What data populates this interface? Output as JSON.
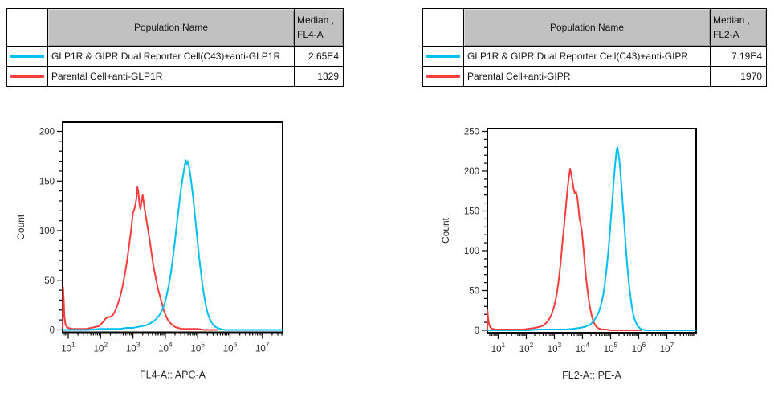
{
  "tables": [
    {
      "header": {
        "population": "Population Name",
        "median_line1": "Median ,",
        "median_line2": "FL4-A"
      },
      "rows": [
        {
          "color": "#00bff3",
          "population": "GLP1R & GIPR Dual Reporter Cell(C43)+anti-GLP1R",
          "median": "2.65E4"
        },
        {
          "color": "#f73e3e",
          "population": "Parental Cell+anti-GLP1R",
          "median": "1329"
        }
      ]
    },
    {
      "header": {
        "population": "Population Name",
        "median_line1": "Median ,",
        "median_line2": "FL2-A"
      },
      "rows": [
        {
          "color": "#00bff3",
          "population": "GLP1R & GIPR Dual Reporter Cell(C43)+anti-GIPR",
          "median": "7.19E4"
        },
        {
          "color": "#f73e3e",
          "population": "Parental Cell+anti-GIPR",
          "median": "1970"
        }
      ]
    }
  ],
  "chart_data": [
    {
      "type": "line",
      "title": "",
      "xlabel": "FL4-A:: APC-A",
      "ylabel": "Count",
      "xscale": "log10",
      "xlim_log": [
        0.83,
        7.63
      ],
      "x_decades": [
        1,
        2,
        3,
        4,
        5,
        6,
        7
      ],
      "ylim": [
        0,
        210
      ],
      "yticks": [
        0,
        50,
        100,
        150,
        200
      ],
      "y_minor_step": 10,
      "grid": false,
      "series": [
        {
          "name": "Parental Cell+anti-GLP1R",
          "color": "#f73e3e",
          "median": "1329",
          "points": [
            [
              0.83,
              2
            ],
            [
              0.84,
              43
            ],
            [
              0.86,
              30
            ],
            [
              0.88,
              14
            ],
            [
              0.91,
              6
            ],
            [
              0.95,
              3
            ],
            [
              1.0,
              2
            ],
            [
              1.1,
              1
            ],
            [
              1.25,
              1
            ],
            [
              1.4,
              1
            ],
            [
              1.55,
              1
            ],
            [
              1.7,
              2
            ],
            [
              1.85,
              3
            ],
            [
              1.95,
              4
            ],
            [
              2.05,
              7
            ],
            [
              2.15,
              11
            ],
            [
              2.22,
              13
            ],
            [
              2.3,
              13
            ],
            [
              2.38,
              15
            ],
            [
              2.45,
              19
            ],
            [
              2.52,
              25
            ],
            [
              2.6,
              33
            ],
            [
              2.68,
              44
            ],
            [
              2.75,
              56
            ],
            [
              2.82,
              70
            ],
            [
              2.88,
              85
            ],
            [
              2.94,
              100
            ],
            [
              3.0,
              118
            ],
            [
              3.04,
              121
            ],
            [
              3.08,
              127
            ],
            [
              3.11,
              133
            ],
            [
              3.14,
              144
            ],
            [
              3.17,
              138
            ],
            [
              3.2,
              127
            ],
            [
              3.23,
              122
            ],
            [
              3.27,
              130
            ],
            [
              3.3,
              136
            ],
            [
              3.33,
              129
            ],
            [
              3.37,
              120
            ],
            [
              3.42,
              110
            ],
            [
              3.47,
              100
            ],
            [
              3.52,
              90
            ],
            [
              3.57,
              78
            ],
            [
              3.63,
              65
            ],
            [
              3.7,
              53
            ],
            [
              3.77,
              42
            ],
            [
              3.84,
              33
            ],
            [
              3.9,
              26
            ],
            [
              3.96,
              19
            ],
            [
              4.02,
              14
            ],
            [
              4.08,
              10
            ],
            [
              4.15,
              7
            ],
            [
              4.22,
              5
            ],
            [
              4.3,
              3
            ],
            [
              4.4,
              2
            ],
            [
              4.5,
              1
            ],
            [
              4.65,
              1
            ],
            [
              4.8,
              1
            ],
            [
              5.0,
              1
            ],
            [
              5.2,
              0
            ],
            [
              5.45,
              0
            ],
            [
              5.6,
              0
            ]
          ]
        },
        {
          "name": "GLP1R & GIPR Dual Reporter Cell(C43)+anti-GLP1R",
          "color": "#00bff3",
          "median": "2.65E4",
          "points": [
            [
              0.83,
              0
            ],
            [
              1.2,
              0
            ],
            [
              1.6,
              0
            ],
            [
              2.0,
              1
            ],
            [
              2.3,
              1
            ],
            [
              2.6,
              1
            ],
            [
              2.8,
              2
            ],
            [
              3.0,
              2
            ],
            [
              3.15,
              3
            ],
            [
              3.3,
              4
            ],
            [
              3.45,
              5
            ],
            [
              3.55,
              7
            ],
            [
              3.65,
              9
            ],
            [
              3.75,
              12
            ],
            [
              3.82,
              15
            ],
            [
              3.9,
              20
            ],
            [
              3.97,
              26
            ],
            [
              4.03,
              33
            ],
            [
              4.1,
              44
            ],
            [
              4.17,
              57
            ],
            [
              4.23,
              72
            ],
            [
              4.3,
              90
            ],
            [
              4.36,
              108
            ],
            [
              4.42,
              124
            ],
            [
              4.47,
              138
            ],
            [
              4.52,
              150
            ],
            [
              4.56,
              158
            ],
            [
              4.6,
              166
            ],
            [
              4.63,
              171
            ],
            [
              4.66,
              167
            ],
            [
              4.69,
              170
            ],
            [
              4.73,
              165
            ],
            [
              4.77,
              157
            ],
            [
              4.81,
              147
            ],
            [
              4.86,
              133
            ],
            [
              4.9,
              120
            ],
            [
              4.95,
              104
            ],
            [
              5.0,
              88
            ],
            [
              5.05,
              72
            ],
            [
              5.1,
              58
            ],
            [
              5.15,
              45
            ],
            [
              5.2,
              34
            ],
            [
              5.25,
              25
            ],
            [
              5.3,
              18
            ],
            [
              5.36,
              12
            ],
            [
              5.42,
              8
            ],
            [
              5.48,
              5
            ],
            [
              5.55,
              3
            ],
            [
              5.62,
              2
            ],
            [
              5.7,
              1
            ],
            [
              5.85,
              0
            ],
            [
              6.2,
              0
            ],
            [
              6.6,
              0
            ],
            [
              7.0,
              0
            ],
            [
              7.3,
              0
            ],
            [
              7.63,
              0
            ]
          ]
        }
      ]
    },
    {
      "type": "line",
      "title": "",
      "xlabel": "FL2-A:: PE-A",
      "ylabel": "Count",
      "xscale": "log10",
      "xlim_log": [
        0.61,
        8.04
      ],
      "x_decades": [
        1,
        2,
        3,
        4,
        5,
        6,
        7
      ],
      "ylim": [
        0,
        251
      ],
      "yticks": [
        0,
        50,
        100,
        150,
        200,
        250
      ],
      "y_minor_step": 10,
      "grid": false,
      "series": [
        {
          "name": "Parental Cell+anti-GIPR",
          "color": "#f73e3e",
          "median": "1970",
          "points": [
            [
              0.61,
              0
            ],
            [
              0.62,
              25
            ],
            [
              0.64,
              16
            ],
            [
              0.67,
              8
            ],
            [
              0.71,
              4
            ],
            [
              0.78,
              2
            ],
            [
              0.9,
              1
            ],
            [
              1.1,
              1
            ],
            [
              1.3,
              1
            ],
            [
              1.5,
              1
            ],
            [
              1.7,
              1
            ],
            [
              1.9,
              1
            ],
            [
              2.1,
              2
            ],
            [
              2.3,
              3
            ],
            [
              2.45,
              4
            ],
            [
              2.6,
              6
            ],
            [
              2.7,
              9
            ],
            [
              2.8,
              13
            ],
            [
              2.9,
              20
            ],
            [
              3.0,
              31
            ],
            [
              3.08,
              45
            ],
            [
              3.15,
              62
            ],
            [
              3.22,
              84
            ],
            [
              3.28,
              108
            ],
            [
              3.34,
              130
            ],
            [
              3.4,
              152
            ],
            [
              3.45,
              172
            ],
            [
              3.5,
              188
            ],
            [
              3.53,
              196
            ],
            [
              3.56,
              203
            ],
            [
              3.59,
              198
            ],
            [
              3.62,
              192
            ],
            [
              3.65,
              185
            ],
            [
              3.69,
              177
            ],
            [
              3.73,
              172
            ],
            [
              3.77,
              174
            ],
            [
              3.81,
              168
            ],
            [
              3.85,
              156
            ],
            [
              3.89,
              142
            ],
            [
              3.93,
              135
            ],
            [
              3.97,
              126
            ],
            [
              4.01,
              112
            ],
            [
              4.05,
              96
            ],
            [
              4.09,
              80
            ],
            [
              4.13,
              65
            ],
            [
              4.18,
              50
            ],
            [
              4.23,
              37
            ],
            [
              4.28,
              26
            ],
            [
              4.33,
              18
            ],
            [
              4.38,
              12
            ],
            [
              4.43,
              8
            ],
            [
              4.48,
              5
            ],
            [
              4.54,
              3
            ],
            [
              4.6,
              2
            ],
            [
              4.7,
              1
            ],
            [
              4.85,
              1
            ],
            [
              5.0,
              0
            ],
            [
              5.4,
              0
            ],
            [
              5.8,
              0
            ],
            [
              6.1,
              0
            ]
          ]
        },
        {
          "name": "GLP1R & GIPR Dual Reporter Cell(C43)+anti-GIPR",
          "color": "#00bff3",
          "median": "7.19E4",
          "points": [
            [
              0.61,
              0
            ],
            [
              1.0,
              0
            ],
            [
              1.5,
              0
            ],
            [
              2.0,
              0
            ],
            [
              2.5,
              1
            ],
            [
              3.0,
              1
            ],
            [
              3.4,
              1
            ],
            [
              3.7,
              2
            ],
            [
              3.9,
              3
            ],
            [
              4.05,
              4
            ],
            [
              4.2,
              6
            ],
            [
              4.3,
              8
            ],
            [
              4.4,
              12
            ],
            [
              4.5,
              17
            ],
            [
              4.58,
              23
            ],
            [
              4.66,
              32
            ],
            [
              4.74,
              45
            ],
            [
              4.8,
              60
            ],
            [
              4.86,
              78
            ],
            [
              4.92,
              100
            ],
            [
              4.97,
              122
            ],
            [
              5.02,
              145
            ],
            [
              5.07,
              168
            ],
            [
              5.11,
              188
            ],
            [
              5.15,
              205
            ],
            [
              5.18,
              216
            ],
            [
              5.21,
              226
            ],
            [
              5.24,
              230
            ],
            [
              5.27,
              224
            ],
            [
              5.31,
              214
            ],
            [
              5.35,
              198
            ],
            [
              5.39,
              180
            ],
            [
              5.43,
              160
            ],
            [
              5.47,
              140
            ],
            [
              5.51,
              120
            ],
            [
              5.55,
              100
            ],
            [
              5.59,
              83
            ],
            [
              5.63,
              67
            ],
            [
              5.67,
              53
            ],
            [
              5.71,
              41
            ],
            [
              5.75,
              31
            ],
            [
              5.79,
              23
            ],
            [
              5.83,
              17
            ],
            [
              5.87,
              12
            ],
            [
              5.91,
              9
            ],
            [
              5.95,
              6
            ],
            [
              6.0,
              4
            ],
            [
              6.06,
              2
            ],
            [
              6.12,
              1
            ],
            [
              6.25,
              0
            ],
            [
              6.6,
              0
            ],
            [
              7.0,
              0
            ],
            [
              7.5,
              0
            ],
            [
              8.04,
              0
            ]
          ]
        }
      ]
    }
  ]
}
